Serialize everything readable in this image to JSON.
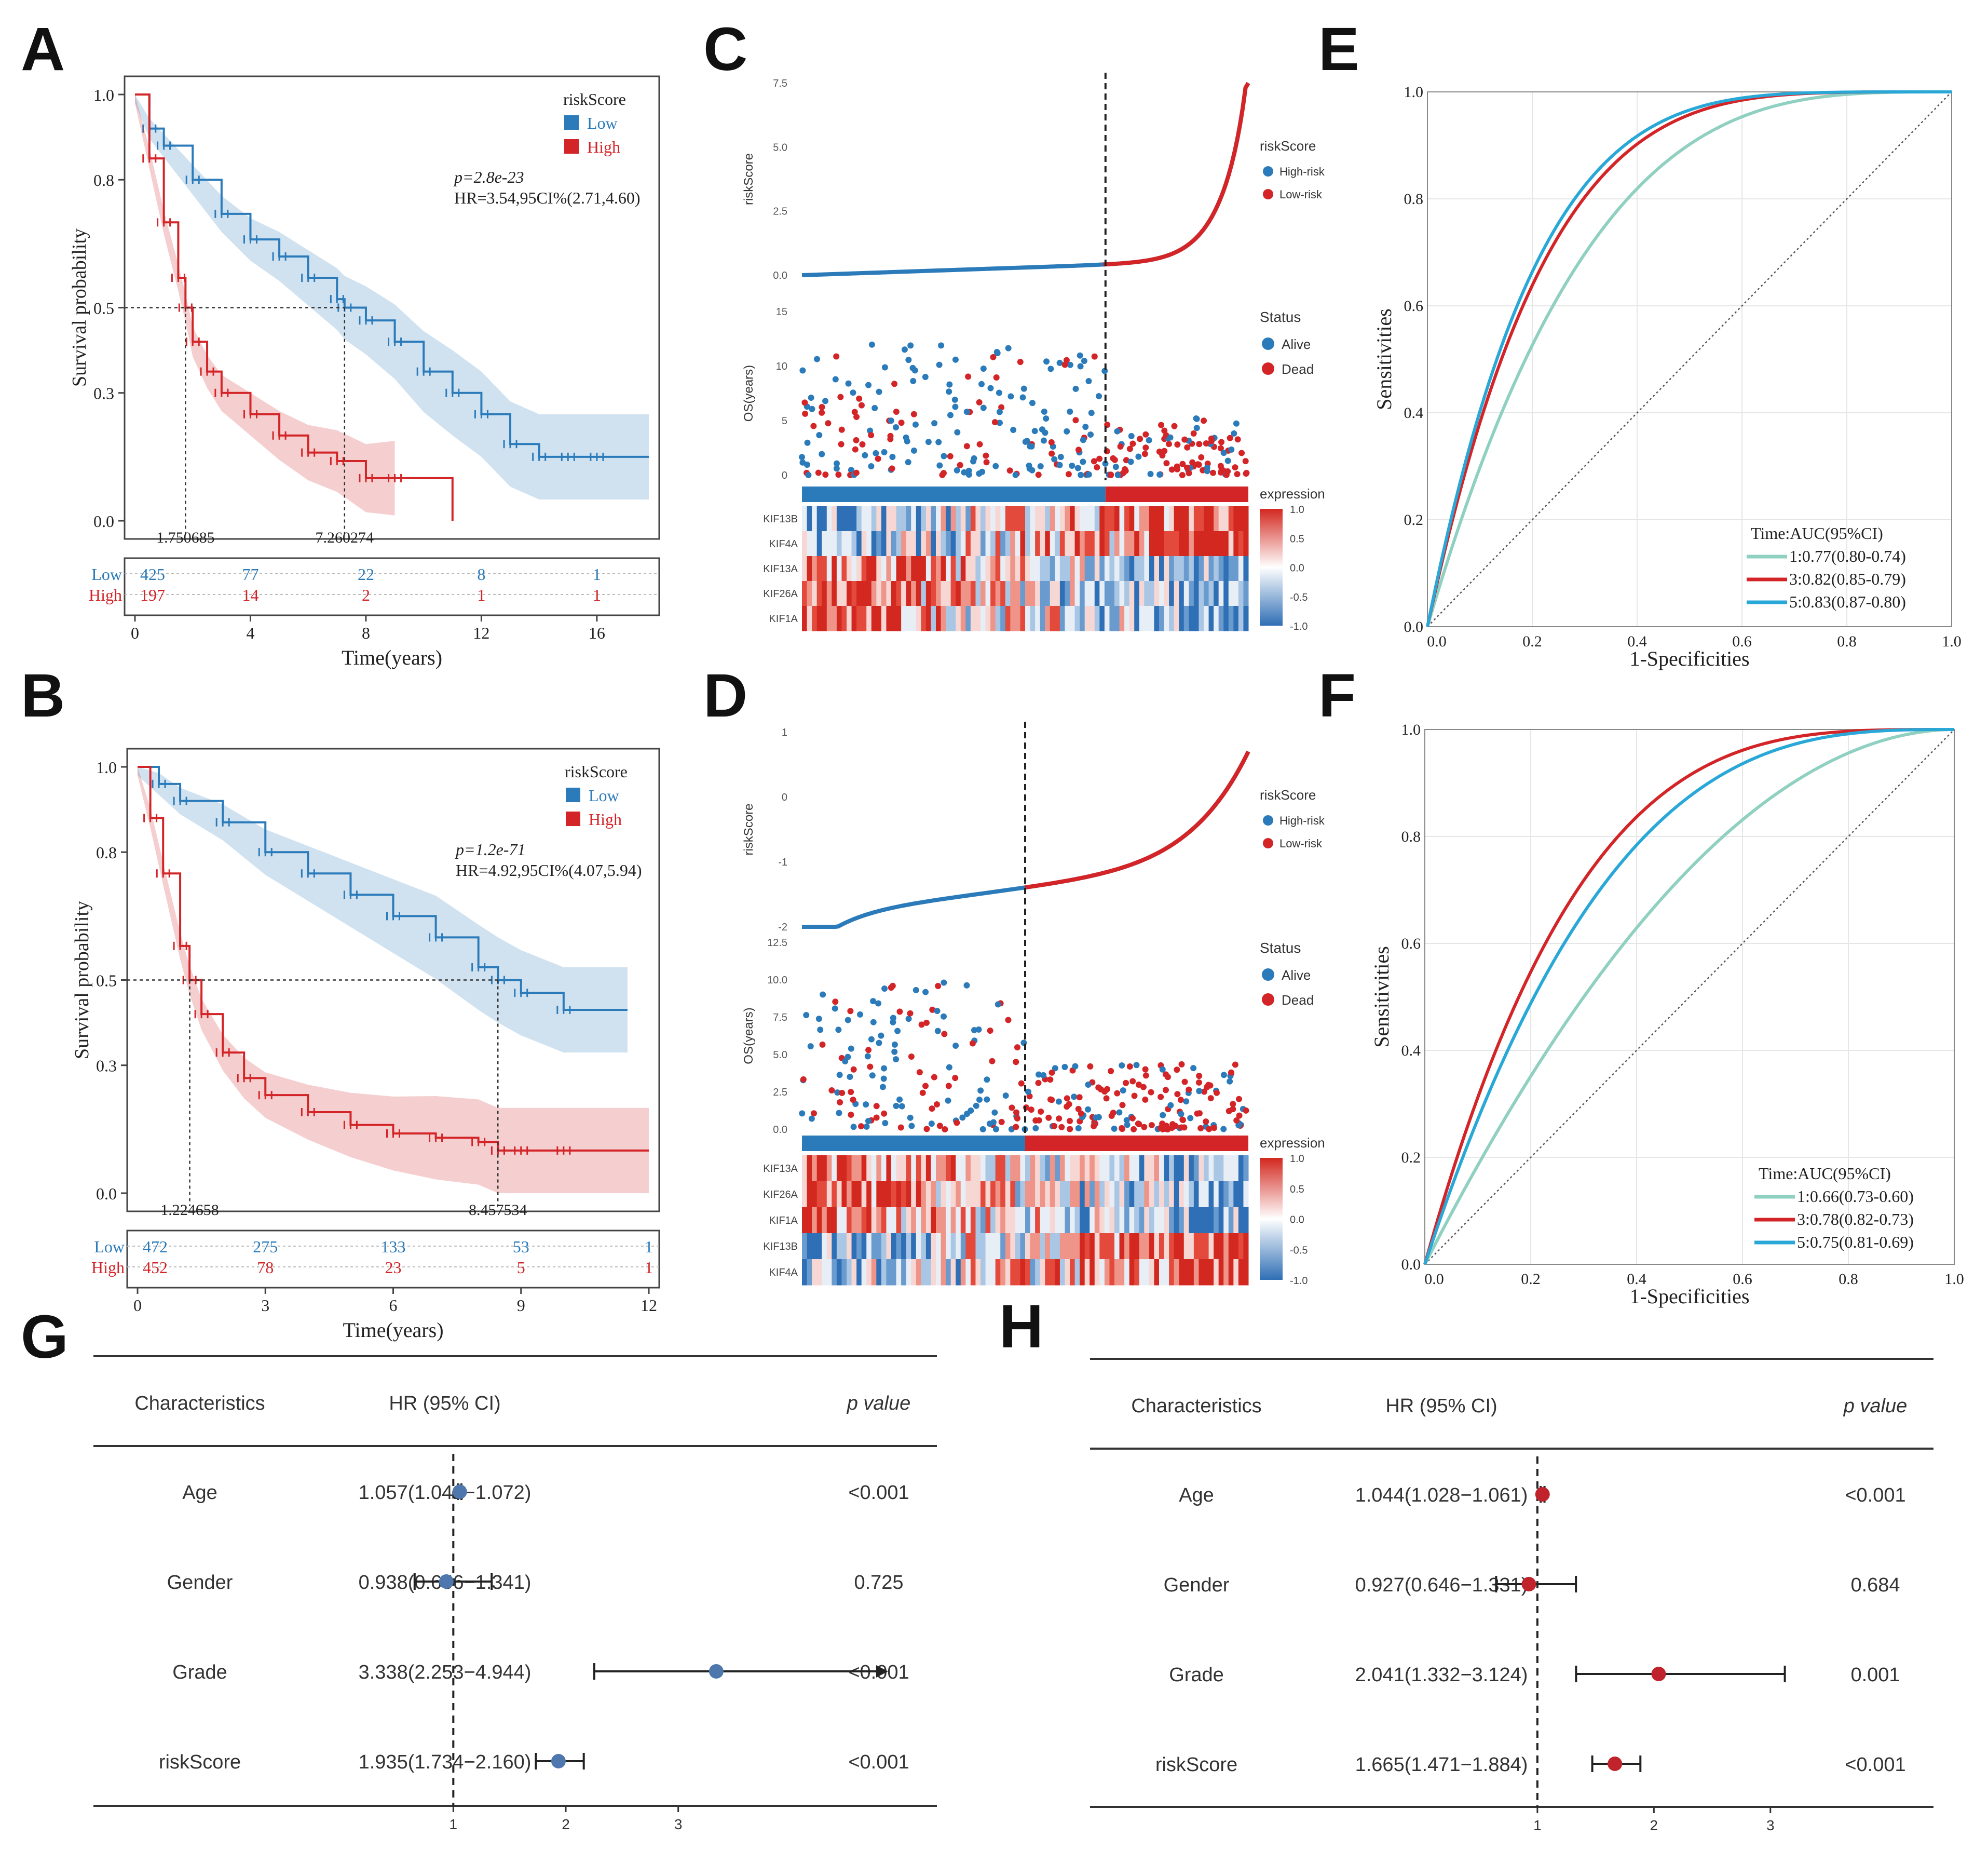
{
  "panel_letters": [
    "A",
    "B",
    "C",
    "D",
    "E",
    "F",
    "G",
    "H"
  ],
  "colors": {
    "low": "#2b7bba",
    "high": "#d32528",
    "roc1": "#8fd0c0",
    "roc3": "#d32528",
    "roc5": "#29a8d8",
    "forest_g": "#4d77ad",
    "forest_h": "#c0232c"
  },
  "chart_data": [
    {
      "type": "line",
      "panel": "A",
      "subtype": "kaplan-meier",
      "xlabel": "Time(years)",
      "ylabel": "Survival probability",
      "xticks": [
        "0",
        "4",
        "8",
        "12",
        "16"
      ],
      "yticks": [
        "0.0",
        "0.3",
        "0.5",
        "0.8",
        "1.0"
      ],
      "xlim": [
        0,
        17.8
      ],
      "legend_title": "riskScore",
      "legend": [
        "Low",
        "High"
      ],
      "p_text": "p=2.8e-23",
      "hr_text": "HR=3.54,95CI%(2.71,4.60)",
      "median_labels": [
        "1.750685",
        "7.260274"
      ],
      "medians": [
        1.750685,
        7.260274
      ],
      "series": [
        {
          "name": "Low",
          "x": [
            0,
            0.5,
            1,
            2,
            3,
            4,
            5,
            6,
            7,
            7.26,
            8,
            9,
            10,
            11,
            12,
            13,
            14,
            15,
            16,
            17.8
          ],
          "y": [
            1,
            0.92,
            0.88,
            0.8,
            0.72,
            0.66,
            0.62,
            0.57,
            0.52,
            0.5,
            0.47,
            0.42,
            0.35,
            0.3,
            0.25,
            0.18,
            0.15,
            0.15,
            0.15,
            0.15
          ]
        },
        {
          "name": "High",
          "x": [
            0,
            0.5,
            1,
            1.5,
            1.75,
            2,
            2.5,
            3,
            4,
            5,
            6,
            7,
            8,
            9,
            11
          ],
          "y": [
            1,
            0.85,
            0.7,
            0.57,
            0.5,
            0.42,
            0.35,
            0.3,
            0.25,
            0.2,
            0.16,
            0.14,
            0.1,
            0.1,
            0
          ]
        }
      ],
      "risk_table": {
        "rows": [
          {
            "name": "Low",
            "values": [
              "425",
              "77",
              "22",
              "8",
              "1"
            ]
          },
          {
            "name": "High",
            "values": [
              "197",
              "14",
              "2",
              "1",
              "1"
            ]
          }
        ]
      }
    },
    {
      "type": "line",
      "panel": "B",
      "subtype": "kaplan-meier",
      "xlabel": "Time(years)",
      "ylabel": "Survival probability",
      "xticks": [
        "0",
        "3",
        "6",
        "9",
        "12"
      ],
      "yticks": [
        "0.0",
        "0.3",
        "0.5",
        "0.8",
        "1.0"
      ],
      "xlim": [
        0,
        12
      ],
      "legend_title": "riskScore",
      "legend": [
        "Low",
        "High"
      ],
      "p_text": "p=1.2e-71",
      "hr_text": "HR=4.92,95CI%(4.07,5.94)",
      "median_labels": [
        "1.224658",
        "8.457534"
      ],
      "medians": [
        1.224658,
        8.457534
      ],
      "series": [
        {
          "name": "Low",
          "x": [
            0,
            0.5,
            1,
            2,
            3,
            4,
            5,
            6,
            7,
            8,
            8.46,
            9,
            10,
            11.5
          ],
          "y": [
            1,
            0.96,
            0.92,
            0.87,
            0.8,
            0.75,
            0.7,
            0.65,
            0.6,
            0.53,
            0.5,
            0.47,
            0.43,
            0.43
          ]
        },
        {
          "name": "High",
          "x": [
            0,
            0.3,
            0.6,
            1,
            1.22,
            1.5,
            2,
            2.5,
            3,
            4,
            5,
            6,
            7,
            8,
            8.46,
            9,
            10,
            12
          ],
          "y": [
            1,
            0.88,
            0.75,
            0.58,
            0.5,
            0.42,
            0.33,
            0.27,
            0.23,
            0.19,
            0.16,
            0.14,
            0.13,
            0.12,
            0.1,
            0.1,
            0.1,
            0.1
          ]
        }
      ],
      "risk_table": {
        "rows": [
          {
            "name": "Low",
            "values": [
              "472",
              "275",
              "133",
              "53",
              "1"
            ]
          },
          {
            "name": "High",
            "values": [
              "452",
              "78",
              "23",
              "5",
              "1"
            ]
          }
        ]
      }
    },
    {
      "type": "scatter",
      "panel": "C",
      "subtype": "risk-plot",
      "top_ylabel": "riskScore",
      "top_yticks": [
        "0.0",
        "2.5",
        "5.0",
        "7.5"
      ],
      "mid_ylabel": "OS(years)",
      "mid_yticks": [
        "0",
        "5",
        "10",
        "15"
      ],
      "legend1_title": "riskScore",
      "legend1": [
        "High-risk",
        "Low-risk"
      ],
      "legend2_title": "Status",
      "legend2": [
        "Alive",
        "Dead"
      ],
      "heat_title": "expression",
      "heat_ticks": [
        "1.0",
        "0.5",
        "0.0",
        "-0.5",
        "-1.0"
      ],
      "genes": [
        "KIF13B",
        "KIF4A",
        "KIF13A",
        "KIF26A",
        "KIF1A"
      ],
      "cutoff_fraction": 0.68,
      "n_patients": 622
    },
    {
      "type": "scatter",
      "panel": "D",
      "subtype": "risk-plot",
      "top_ylabel": "riskScore",
      "top_yticks": [
        "-2",
        "-1",
        "0",
        "1"
      ],
      "mid_ylabel": "OS(years)",
      "mid_yticks": [
        "0.0",
        "2.5",
        "5.0",
        "7.5",
        "10.0",
        "12.5"
      ],
      "legend1_title": "riskScore",
      "legend1": [
        "High-risk",
        "Low-risk"
      ],
      "legend2_title": "Status",
      "legend2": [
        "Alive",
        "Dead"
      ],
      "heat_title": "expression",
      "heat_ticks": [
        "1.0",
        "0.5",
        "0.0",
        "-0.5",
        "-1.0"
      ],
      "genes": [
        "KIF13A",
        "KIF26A",
        "KIF1A",
        "KIF13B",
        "KIF4A"
      ],
      "cutoff_fraction": 0.5,
      "n_patients": 924
    },
    {
      "type": "line",
      "panel": "E",
      "subtype": "roc",
      "xlabel": "1-Specificities",
      "ylabel": "Sensitivities",
      "ticks": [
        "0.0",
        "0.2",
        "0.4",
        "0.6",
        "0.8",
        "1.0"
      ],
      "legend_title": "Time:AUC(95%CI)",
      "series": [
        {
          "name": "1:0.77(0.80-0.74)",
          "auc": 0.77
        },
        {
          "name": "3:0.82(0.85-0.79)",
          "auc": 0.82
        },
        {
          "name": "5:0.83(0.87-0.80)",
          "auc": 0.83
        }
      ]
    },
    {
      "type": "line",
      "panel": "F",
      "subtype": "roc",
      "xlabel": "1-Specificities",
      "ylabel": "Sensitivities",
      "ticks": [
        "0.0",
        "0.2",
        "0.4",
        "0.6",
        "0.8",
        "1.0"
      ],
      "legend_title": "Time:AUC(95%CI)",
      "series": [
        {
          "name": "1:0.66(0.73-0.60)",
          "auc": 0.66
        },
        {
          "name": "3:0.78(0.82-0.73)",
          "auc": 0.78
        },
        {
          "name": "5:0.75(0.81-0.69)",
          "auc": 0.75
        }
      ]
    },
    {
      "type": "table",
      "panel": "G",
      "subtype": "forest",
      "headers": [
        "Characteristics",
        "HR (95% CI)",
        "p value"
      ],
      "xticks": [
        "1",
        "2",
        "3"
      ],
      "xlim": [
        -2.2,
        5.3
      ],
      "rows": [
        {
          "name": "Age",
          "hr_text": "1.057(1.042−1.072)",
          "hr": 1.057,
          "lo": 1.042,
          "hi": 1.072,
          "p": "<0.001",
          "arrow": false
        },
        {
          "name": "Gender",
          "hr_text": "0.938(0.656−1.341)",
          "hr": 0.938,
          "lo": 0.656,
          "hi": 1.341,
          "p": "0.725",
          "arrow": false
        },
        {
          "name": "Grade",
          "hr_text": "3.338(2.253−4.944)",
          "hr": 3.338,
          "lo": 2.253,
          "hi": 4.944,
          "p": "<0.001",
          "arrow": true
        },
        {
          "name": "riskScore",
          "hr_text": "1.935(1.734−2.160)",
          "hr": 1.935,
          "lo": 1.734,
          "hi": 2.16,
          "p": "<0.001",
          "arrow": false
        }
      ]
    },
    {
      "type": "table",
      "panel": "H",
      "subtype": "forest",
      "headers": [
        "Characteristics",
        "HR (95% CI)",
        "p value"
      ],
      "xticks": [
        "1",
        "2",
        "3"
      ],
      "xlim": [
        -2.84,
        4.4
      ],
      "rows": [
        {
          "name": "Age",
          "hr_text": "1.044(1.028−1.061)",
          "hr": 1.044,
          "lo": 1.028,
          "hi": 1.061,
          "p": "<0.001",
          "arrow": false
        },
        {
          "name": "Gender",
          "hr_text": "0.927(0.646−1.331)",
          "hr": 0.927,
          "lo": 0.646,
          "hi": 1.331,
          "p": "0.684",
          "arrow": false
        },
        {
          "name": "Grade",
          "hr_text": "2.041(1.332−3.124)",
          "hr": 2.041,
          "lo": 1.332,
          "hi": 3.124,
          "p": "0.001",
          "arrow": false
        },
        {
          "name": "riskScore",
          "hr_text": "1.665(1.471−1.884)",
          "hr": 1.665,
          "lo": 1.471,
          "hi": 1.884,
          "p": "<0.001",
          "arrow": false
        }
      ]
    }
  ]
}
